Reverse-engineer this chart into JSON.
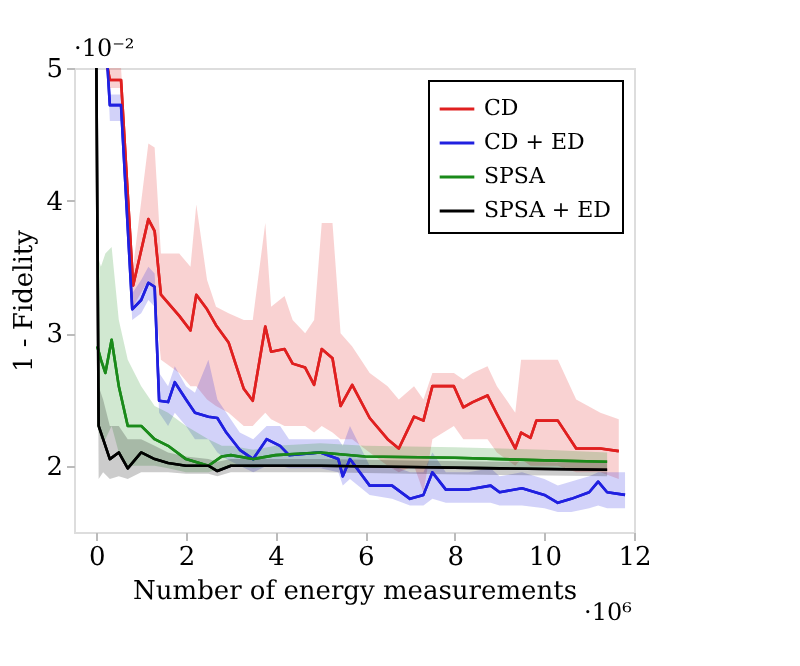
{
  "chart_data": {
    "type": "line",
    "xlabel": "Number of energy measurements",
    "ylabel": "1 - Fidelity",
    "annotations": [
      "·10⁻²",
      "·10⁶"
    ],
    "xlim": [
      -0.5,
      12
    ],
    "xticks": [
      0,
      2,
      4,
      6,
      8,
      10,
      12
    ],
    "ylim": [
      1.5,
      5
    ],
    "yticks": [
      2,
      3,
      4,
      5
    ],
    "grid": false,
    "legend": "top right",
    "line_style": "solid",
    "marker": "none",
    "series": [
      {
        "name": "CD",
        "color": "#e02020",
        "x": [
          0.25,
          0.3,
          0.55,
          0.82,
          1.16,
          1.3,
          1.44,
          1.85,
          2.1,
          2.23,
          2.47,
          2.67,
          2.95,
          3.29,
          3.49,
          3.77,
          3.9,
          4.2,
          4.38,
          4.66,
          4.86,
          5.03,
          5.27,
          5.45,
          5.71,
          6.1,
          6.5,
          6.75,
          7.09,
          7.3,
          7.5,
          7.98,
          8.19,
          8.4,
          8.73,
          8.94,
          9.35,
          9.48,
          9.69,
          9.82,
          10.3,
          10.71,
          11.25,
          11.66
        ],
        "values": [
          5.0,
          4.91,
          4.91,
          3.36,
          3.86,
          3.77,
          3.29,
          3.13,
          3.02,
          3.29,
          3.18,
          3.06,
          2.93,
          2.58,
          2.49,
          3.05,
          2.86,
          2.88,
          2.77,
          2.74,
          2.61,
          2.88,
          2.81,
          2.45,
          2.61,
          2.36,
          2.2,
          2.13,
          2.37,
          2.34,
          2.6,
          2.6,
          2.44,
          2.48,
          2.53,
          2.39,
          2.13,
          2.25,
          2.21,
          2.34,
          2.34,
          2.13,
          2.13,
          2.11
        ],
        "lower": [
          5.0,
          4.85,
          4.85,
          3.2,
          3.4,
          3.3,
          2.8,
          2.7,
          2.6,
          2.6,
          2.5,
          2.45,
          2.4,
          2.3,
          2.3,
          2.4,
          2.35,
          2.3,
          2.3,
          2.3,
          2.25,
          2.3,
          2.25,
          2.2,
          2.2,
          2.1,
          2.0,
          1.95,
          2.0,
          1.8,
          2.2,
          2.3,
          2.2,
          2.2,
          2.2,
          2.1,
          2.0,
          2.05,
          2.0,
          2.0,
          2.0,
          1.95,
          1.95,
          1.9
        ],
        "upper": [
          5.0,
          5.0,
          5.0,
          3.5,
          4.43,
          4.4,
          3.6,
          3.6,
          3.5,
          3.97,
          3.4,
          3.2,
          3.15,
          3.1,
          3.1,
          3.83,
          3.2,
          3.28,
          3.1,
          3.0,
          3.1,
          3.83,
          3.83,
          3.0,
          2.9,
          2.7,
          2.6,
          2.5,
          2.6,
          2.5,
          2.7,
          2.7,
          2.65,
          2.7,
          2.75,
          2.6,
          2.4,
          2.8,
          2.8,
          2.8,
          2.8,
          2.5,
          2.4,
          2.35
        ]
      },
      {
        "name": "CD + ED",
        "color": "#2020e0",
        "x": [
          0.25,
          0.3,
          0.55,
          0.8,
          1.0,
          1.16,
          1.3,
          1.4,
          1.6,
          1.75,
          2.0,
          2.2,
          2.5,
          2.7,
          2.9,
          3.2,
          3.5,
          3.8,
          4.1,
          4.3,
          5.0,
          5.4,
          5.5,
          5.66,
          6.1,
          6.6,
          7.0,
          7.3,
          7.5,
          7.8,
          8.3,
          8.8,
          9.0,
          9.5,
          10.0,
          10.3,
          10.6,
          11.0,
          11.2,
          11.4,
          11.8
        ],
        "values": [
          5.0,
          4.72,
          4.72,
          3.18,
          3.25,
          3.38,
          3.35,
          2.49,
          2.48,
          2.63,
          2.5,
          2.4,
          2.37,
          2.36,
          2.25,
          2.12,
          2.05,
          2.2,
          2.15,
          2.08,
          2.1,
          2.05,
          1.92,
          2.05,
          1.85,
          1.85,
          1.75,
          1.78,
          1.95,
          1.82,
          1.82,
          1.85,
          1.8,
          1.83,
          1.78,
          1.72,
          1.75,
          1.8,
          1.88,
          1.8,
          1.78
        ],
        "lower": [
          5.0,
          4.6,
          4.6,
          3.1,
          3.15,
          3.25,
          3.2,
          2.4,
          2.3,
          2.4,
          2.3,
          2.2,
          2.2,
          2.1,
          2.05,
          2.0,
          1.95,
          2.0,
          2.0,
          1.98,
          1.98,
          1.95,
          1.85,
          1.9,
          1.78,
          1.75,
          1.7,
          1.7,
          1.75,
          1.72,
          1.72,
          1.72,
          1.7,
          1.7,
          1.68,
          1.65,
          1.65,
          1.68,
          1.7,
          1.68,
          1.68
        ],
        "upper": [
          5.0,
          4.8,
          4.8,
          3.3,
          3.4,
          3.5,
          3.45,
          2.7,
          2.6,
          2.75,
          2.6,
          2.55,
          2.8,
          2.5,
          2.4,
          2.25,
          2.2,
          2.3,
          2.3,
          2.2,
          2.2,
          2.2,
          2.15,
          2.3,
          2.0,
          2.0,
          1.95,
          1.95,
          2.1,
          1.95,
          1.95,
          1.98,
          1.92,
          1.95,
          1.9,
          1.85,
          1.88,
          1.92,
          1.95,
          1.95,
          1.95
        ]
      },
      {
        "name": "SPSA",
        "color": "#1a8a1a",
        "x": [
          0.02,
          0.1,
          0.2,
          0.34,
          0.5,
          0.7,
          1.0,
          1.3,
          1.6,
          2.0,
          2.5,
          2.8,
          3.0,
          3.5,
          4.0,
          5.0,
          6.0,
          8.0,
          10.0,
          11.4
        ],
        "values": [
          2.9,
          2.8,
          2.7,
          2.95,
          2.6,
          2.3,
          2.3,
          2.2,
          2.15,
          2.05,
          2.0,
          2.07,
          2.08,
          2.05,
          2.08,
          2.1,
          2.07,
          2.06,
          2.04,
          2.03
        ],
        "lower": [
          2.3,
          2.2,
          2.2,
          2.3,
          2.1,
          2.0,
          2.0,
          2.0,
          1.98,
          1.95,
          1.95,
          1.98,
          2.0,
          1.98,
          2.0,
          2.0,
          1.99,
          1.99,
          1.98,
          1.98
        ],
        "upper": [
          3.6,
          3.5,
          3.6,
          3.65,
          3.1,
          2.8,
          2.6,
          2.45,
          2.4,
          2.3,
          2.2,
          2.15,
          2.15,
          2.12,
          2.15,
          2.17,
          2.15,
          2.14,
          2.12,
          2.1
        ]
      },
      {
        "name": "SPSA + ED",
        "color": "#000000",
        "x": [
          0.0,
          0.05,
          0.15,
          0.3,
          0.5,
          0.7,
          1.0,
          1.3,
          1.6,
          2.0,
          2.5,
          2.7,
          3.0,
          3.5,
          5.0,
          7.0,
          9.0,
          11.4
        ],
        "values": [
          5.0,
          2.3,
          2.2,
          2.05,
          2.1,
          1.98,
          2.1,
          2.05,
          2.02,
          2.0,
          2.0,
          1.96,
          2.0,
          2.0,
          2.0,
          1.99,
          1.98,
          1.97
        ],
        "lower": [
          5.0,
          1.9,
          1.95,
          1.9,
          1.92,
          1.9,
          1.95,
          1.95,
          1.95,
          1.94,
          1.94,
          1.92,
          1.95,
          1.95,
          1.95,
          1.94,
          1.93,
          1.92
        ],
        "upper": [
          5.0,
          2.6,
          2.5,
          2.3,
          2.3,
          2.2,
          2.2,
          2.15,
          2.1,
          2.07,
          2.05,
          2.03,
          2.05,
          2.05,
          2.05,
          2.04,
          2.03,
          2.02
        ]
      }
    ]
  }
}
